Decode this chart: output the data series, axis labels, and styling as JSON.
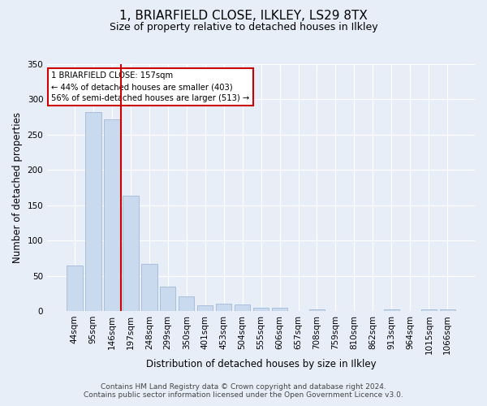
{
  "title": "1, BRIARFIELD CLOSE, ILKLEY, LS29 8TX",
  "subtitle": "Size of property relative to detached houses in Ilkley",
  "xlabel": "Distribution of detached houses by size in Ilkley",
  "ylabel": "Number of detached properties",
  "categories": [
    "44sqm",
    "95sqm",
    "146sqm",
    "197sqm",
    "248sqm",
    "299sqm",
    "350sqm",
    "401sqm",
    "453sqm",
    "504sqm",
    "555sqm",
    "606sqm",
    "657sqm",
    "708sqm",
    "759sqm",
    "810sqm",
    "862sqm",
    "913sqm",
    "964sqm",
    "1015sqm",
    "1066sqm"
  ],
  "values": [
    65,
    282,
    272,
    163,
    67,
    35,
    21,
    8,
    10,
    9,
    4,
    4,
    0,
    2,
    0,
    0,
    0,
    2,
    0,
    2,
    2
  ],
  "bar_color": "#c9d9ee",
  "bar_edge_color": "#a0b8d8",
  "vline_index": 2,
  "vline_color": "#cc0000",
  "annotation_title": "1 BRIARFIELD CLOSE: 157sqm",
  "annotation_line1": "← 44% of detached houses are smaller (403)",
  "annotation_line2": "56% of semi-detached houses are larger (513) →",
  "annotation_box_color": "#cc0000",
  "ylim": [
    0,
    350
  ],
  "yticks": [
    0,
    50,
    100,
    150,
    200,
    250,
    300,
    350
  ],
  "footer1": "Contains HM Land Registry data © Crown copyright and database right 2024.",
  "footer2": "Contains public sector information licensed under the Open Government Licence v3.0.",
  "bg_color": "#e8eef8",
  "plot_bg_color": "#e8eef8",
  "grid_color": "#ffffff",
  "title_fontsize": 11,
  "subtitle_fontsize": 9,
  "axis_label_fontsize": 8.5,
  "tick_fontsize": 7.5,
  "footer_fontsize": 6.5
}
